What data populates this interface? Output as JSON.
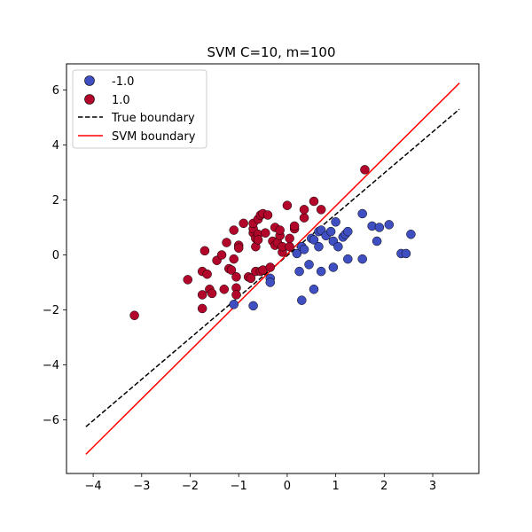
{
  "chart_data": {
    "type": "scatter",
    "title": "SVM C=10, m=100",
    "xlabel": "",
    "ylabel": "",
    "xlim": [
      -4.55,
      3.95
    ],
    "ylim": [
      -7.95,
      6.95
    ],
    "xticks": [
      -4,
      -3,
      -2,
      -1,
      0,
      1,
      2,
      3
    ],
    "yticks": [
      -6,
      -4,
      -2,
      0,
      2,
      4,
      6
    ],
    "grid": false,
    "legend_position": "top-left",
    "colors": {
      "neg": "#3f4fc1",
      "pos": "#b2062a",
      "true_line": "#000000",
      "svm_line": "#ff0000"
    },
    "series": [
      {
        "name": "-1.0",
        "points": [
          [
            -1.1,
            -1.8
          ],
          [
            -0.7,
            -1.85
          ],
          [
            -0.35,
            -0.85
          ],
          [
            -0.35,
            -1.0
          ],
          [
            0.25,
            -0.6
          ],
          [
            0.3,
            -1.65
          ],
          [
            0.45,
            -0.35
          ],
          [
            0.55,
            -1.25
          ],
          [
            0.7,
            -0.6
          ],
          [
            0.95,
            -0.45
          ],
          [
            0.2,
            0.05
          ],
          [
            0.3,
            0.3
          ],
          [
            0.35,
            0.2
          ],
          [
            0.5,
            0.6
          ],
          [
            0.55,
            0.55
          ],
          [
            0.65,
            0.3
          ],
          [
            0.65,
            0.85
          ],
          [
            0.7,
            0.9
          ],
          [
            0.8,
            0.7
          ],
          [
            0.9,
            0.85
          ],
          [
            0.95,
            0.5
          ],
          [
            1.0,
            1.2
          ],
          [
            1.05,
            0.3
          ],
          [
            1.15,
            0.65
          ],
          [
            1.2,
            0.75
          ],
          [
            1.25,
            0.85
          ],
          [
            1.25,
            -0.15
          ],
          [
            1.55,
            -0.15
          ],
          [
            1.55,
            1.5
          ],
          [
            1.75,
            1.05
          ],
          [
            1.85,
            0.5
          ],
          [
            1.9,
            1.0
          ],
          [
            2.1,
            1.1
          ],
          [
            2.35,
            0.05
          ],
          [
            2.45,
            0.05
          ],
          [
            2.55,
            0.75
          ]
        ]
      },
      {
        "name": "1.0",
        "points": [
          [
            -3.15,
            -2.2
          ],
          [
            -2.05,
            -0.9
          ],
          [
            -1.75,
            -1.95
          ],
          [
            -1.75,
            -1.45
          ],
          [
            -1.75,
            -0.6
          ],
          [
            -1.7,
            0.15
          ],
          [
            -1.65,
            -0.7
          ],
          [
            -1.6,
            -1.25
          ],
          [
            -1.55,
            -1.4
          ],
          [
            -1.45,
            -0.2
          ],
          [
            -1.35,
            0.0
          ],
          [
            -1.3,
            -1.25
          ],
          [
            -1.25,
            0.45
          ],
          [
            -1.2,
            -0.5
          ],
          [
            -1.15,
            -0.55
          ],
          [
            -1.1,
            -0.15
          ],
          [
            -1.1,
            0.9
          ],
          [
            -1.05,
            -0.8
          ],
          [
            -1.05,
            -1.2
          ],
          [
            -1.05,
            -1.45
          ],
          [
            -1.0,
            0.35
          ],
          [
            -1.0,
            0.25
          ],
          [
            -0.9,
            1.15
          ],
          [
            -0.8,
            -0.8
          ],
          [
            -0.75,
            -0.85
          ],
          [
            -0.7,
            0.8
          ],
          [
            -0.7,
            0.95
          ],
          [
            -0.7,
            1.15
          ],
          [
            -0.65,
            0.3
          ],
          [
            -0.65,
            0.6
          ],
          [
            -0.65,
            -0.6
          ],
          [
            -0.6,
            1.3
          ],
          [
            -0.6,
            0.75
          ],
          [
            -0.6,
            0.55
          ],
          [
            -0.55,
            1.45
          ],
          [
            -0.55,
            -0.6
          ],
          [
            -0.5,
            -0.55
          ],
          [
            -0.5,
            1.5
          ],
          [
            -0.45,
            0.8
          ],
          [
            -0.4,
            1.45
          ],
          [
            -0.35,
            -0.45
          ],
          [
            -0.3,
            0.5
          ],
          [
            -0.25,
            1.0
          ],
          [
            -0.25,
            0.35
          ],
          [
            -0.2,
            0.45
          ],
          [
            -0.15,
            0.7
          ],
          [
            -0.15,
            0.9
          ],
          [
            -0.1,
            0.1
          ],
          [
            -0.1,
            0.3
          ],
          [
            0.0,
            1.8
          ],
          [
            0.05,
            0.3
          ],
          [
            0.05,
            0.6
          ],
          [
            0.15,
            0.95
          ],
          [
            0.15,
            1.05
          ],
          [
            0.35,
            1.35
          ],
          [
            0.35,
            1.65
          ],
          [
            0.55,
            1.95
          ],
          [
            0.7,
            1.65
          ],
          [
            1.6,
            3.1
          ]
        ]
      }
    ],
    "lines": [
      {
        "name": "True boundary",
        "style": "dashed",
        "x": [
          -4.15,
          3.55
        ],
        "y": [
          -6.25,
          5.3
        ]
      },
      {
        "name": "SVM boundary",
        "style": "solid",
        "x": [
          -4.15,
          3.55
        ],
        "y": [
          -7.25,
          6.25
        ]
      }
    ]
  }
}
